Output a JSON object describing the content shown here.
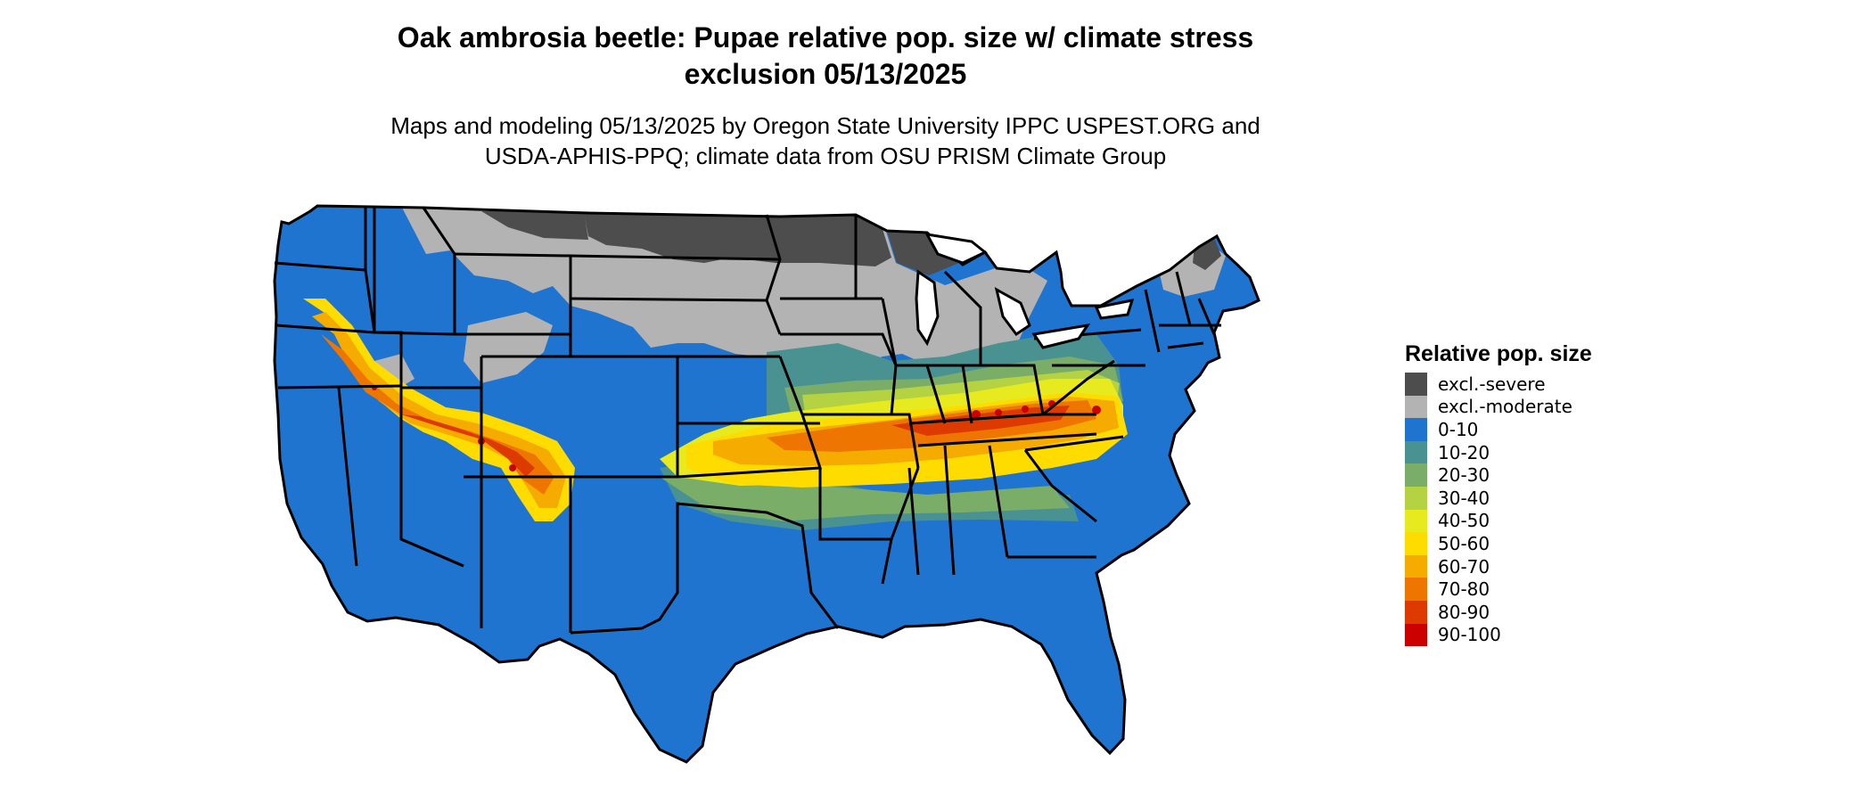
{
  "title_line1": "Oak ambrosia beetle: Pupae relative pop. size w/ climate stress",
  "title_line2": "exclusion 05/13/2025",
  "subtitle_line1": "Maps and modeling 05/13/2025 by Oregon State University IPPC USPEST.ORG and",
  "subtitle_line2": "USDA-APHIS-PPQ; climate data from OSU PRISM Climate Group",
  "legend": {
    "title": "Relative pop. size",
    "items": [
      {
        "label": "excl.-severe",
        "color": "#4d4d4d"
      },
      {
        "label": "excl.-moderate",
        "color": "#b3b3b3"
      },
      {
        "label": "0-10",
        "color": "#1e74cf"
      },
      {
        "label": "10-20",
        "color": "#4a9192"
      },
      {
        "label": "20-30",
        "color": "#7aad68"
      },
      {
        "label": "30-40",
        "color": "#b5d243"
      },
      {
        "label": "40-50",
        "color": "#e6ea1f"
      },
      {
        "label": "50-60",
        "color": "#ffdc00"
      },
      {
        "label": "60-70",
        "color": "#f5ab00"
      },
      {
        "label": "70-80",
        "color": "#ee7600"
      },
      {
        "label": "80-90",
        "color": "#dd3a00"
      },
      {
        "label": "90-100",
        "color": "#cc0000"
      }
    ]
  }
}
